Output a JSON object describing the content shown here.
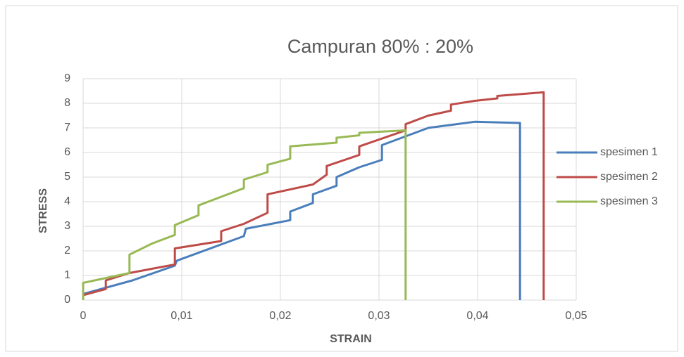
{
  "chart_data": {
    "type": "line",
    "title": "Campuran 80% : 20%",
    "xlabel": "STRAIN",
    "ylabel": "STRESS",
    "xlim": [
      0,
      0.05
    ],
    "ylim": [
      0,
      9
    ],
    "xticks": [
      0,
      {
        "value": 0.01,
        "label": "0,01"
      },
      {
        "value": 0.02,
        "label": "0,02"
      },
      {
        "value": 0.03,
        "label": "0,03"
      },
      {
        "value": 0.04,
        "label": "0,04"
      },
      {
        "value": 0.05,
        "label": "0,05"
      }
    ],
    "yticks": [
      0,
      1,
      2,
      3,
      4,
      5,
      6,
      7,
      8,
      9
    ],
    "grid": true,
    "legend": "right",
    "series": [
      {
        "name": "spesimen 1",
        "color": "#4a7ebb",
        "x": [
          0,
          0.005,
          0.0093,
          0.0095,
          0.0163,
          0.0165,
          0.021,
          0.021,
          0.0233,
          0.0233,
          0.0257,
          0.0257,
          0.028,
          0.0303,
          0.0303,
          0.035,
          0.0397,
          0.0443,
          0.0443
        ],
        "values": [
          0.25,
          0.8,
          1.4,
          1.6,
          2.6,
          2.9,
          3.25,
          3.6,
          3.95,
          4.3,
          4.65,
          5.0,
          5.4,
          5.7,
          6.3,
          7.0,
          7.25,
          7.2,
          0
        ]
      },
      {
        "name": "spesimen 2",
        "color": "#be4b48",
        "x": [
          0,
          0.0023,
          0.0023,
          0.0047,
          0.0093,
          0.0093,
          0.014,
          0.014,
          0.0163,
          0.0187,
          0.0187,
          0.0233,
          0.0247,
          0.0247,
          0.028,
          0.028,
          0.0327,
          0.0327,
          0.035,
          0.0373,
          0.0373,
          0.0397,
          0.042,
          0.042,
          0.0467,
          0.0467
        ],
        "values": [
          0.2,
          0.45,
          0.8,
          1.1,
          1.45,
          2.1,
          2.4,
          2.8,
          3.1,
          3.55,
          4.3,
          4.7,
          5.1,
          5.45,
          5.9,
          6.25,
          6.9,
          7.15,
          7.5,
          7.7,
          7.95,
          8.1,
          8.2,
          8.3,
          8.45,
          0
        ]
      },
      {
        "name": "spesimen 3",
        "color": "#98b954",
        "x": [
          0,
          0,
          0.0047,
          0.0047,
          0.007,
          0.0093,
          0.0093,
          0.0117,
          0.0117,
          0.014,
          0.0163,
          0.0163,
          0.0187,
          0.0187,
          0.021,
          0.021,
          0.0257,
          0.0257,
          0.028,
          0.028,
          0.0327,
          0.0327
        ],
        "values": [
          0,
          0.7,
          1.1,
          1.85,
          2.3,
          2.65,
          3.05,
          3.45,
          3.85,
          4.2,
          4.55,
          4.9,
          5.2,
          5.5,
          5.75,
          6.25,
          6.4,
          6.6,
          6.7,
          6.8,
          6.9,
          0
        ]
      }
    ]
  }
}
